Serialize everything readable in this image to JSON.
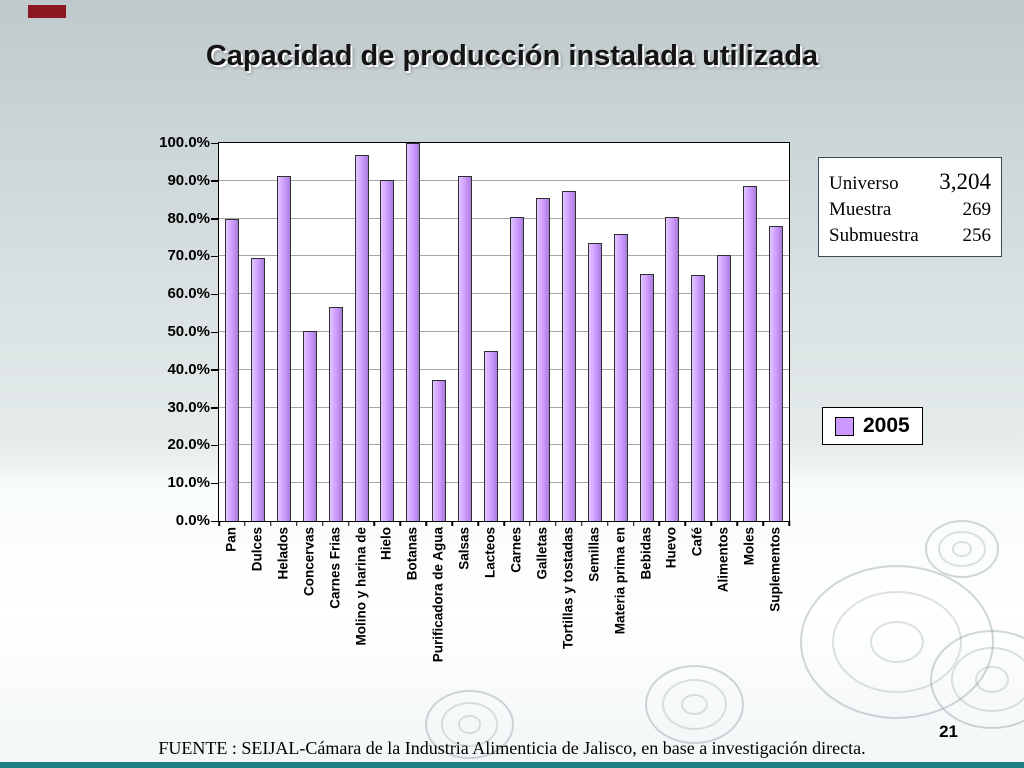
{
  "slide": {
    "title": "Capacidad de producción instalada utilizada",
    "page_number": "21",
    "footer": "FUENTE : SEIJAL-Cámara de la Industria Alimenticia de Jalisco,  en base a investigación directa."
  },
  "info_box": {
    "rows": [
      {
        "label": "Universo",
        "value": "3,204"
      },
      {
        "label": "Muestra",
        "value": "269"
      },
      {
        "label": "Submuestra",
        "value": "256"
      }
    ]
  },
  "legend": {
    "label": "2005",
    "swatch_color": "#CC99FF"
  },
  "chart_data": {
    "type": "bar",
    "title": "Capacidad de producción instalada utilizada",
    "categories": [
      "Pan",
      "Dulces",
      "Helados",
      "Concervas",
      "Carnes Frias",
      "Molino y harina de",
      "Hielo",
      "Botanas",
      "Purificadora de Agua",
      "Salsas",
      "Lacteos",
      "Carnes",
      "Galletas",
      "Tortillas y tostadas",
      "Semillas",
      "Materia prima en",
      "Bebidas",
      "Huevo",
      "Café",
      "Alimentos",
      "Moles",
      "Suplementos"
    ],
    "series": [
      {
        "name": "2005",
        "values": [
          79.9,
          69.6,
          91.4,
          50.2,
          56.6,
          96.9,
          90.2,
          100.0,
          37.4,
          91.4,
          45.1,
          80.4,
          85.4,
          87.4,
          73.5,
          76.0,
          65.4,
          80.3,
          65.1,
          70.4,
          88.5,
          78.0
        ]
      }
    ],
    "xlabel": "",
    "ylabel": "",
    "ylim": [
      0,
      100
    ],
    "ytick_values": [
      0,
      10,
      20,
      30,
      40,
      50,
      60,
      70,
      80,
      90,
      100
    ],
    "ytick_labels": [
      "0.0%",
      "10.0%",
      "20.0%",
      "30.0%",
      "40.0%",
      "50.0%",
      "60.0%",
      "70.0%",
      "80.0%",
      "90.0%",
      "100.0%"
    ],
    "grid": true,
    "legend_position": "right",
    "bar_color": "#CC99FF"
  }
}
